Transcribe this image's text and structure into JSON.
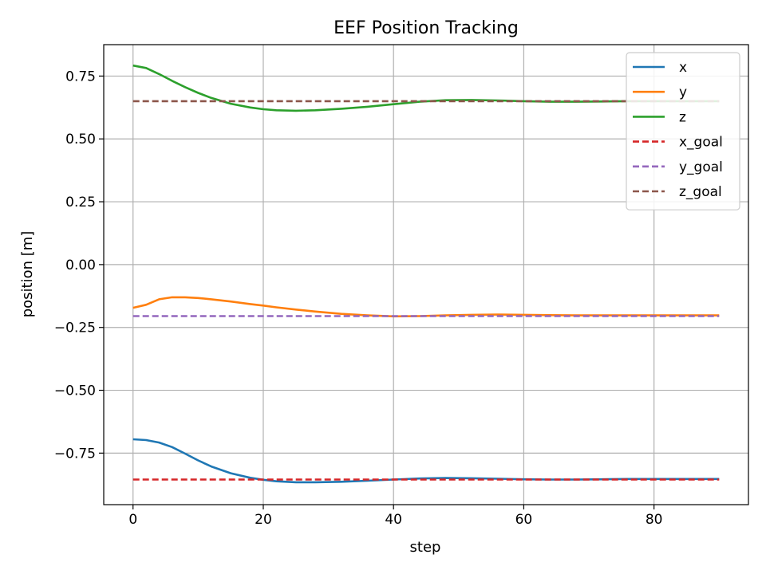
{
  "chart_data": {
    "type": "line",
    "title": "EEF Position Tracking",
    "xlabel": "step",
    "ylabel": "position [m]",
    "xlim": [
      -4.5,
      94.5
    ],
    "ylim": [
      -0.955,
      0.875
    ],
    "xticks": [
      0,
      20,
      40,
      60,
      80
    ],
    "xtick_labels": [
      "0",
      "20",
      "40",
      "60",
      "80"
    ],
    "yticks": [
      0.75,
      0.5,
      0.25,
      0.0,
      -0.25,
      -0.5,
      -0.75
    ],
    "ytick_labels": [
      "0.75",
      "0.50",
      "0.25",
      "0.00",
      "−0.25",
      "−0.50",
      "−0.75"
    ],
    "grid": true,
    "legend_position": "top-right",
    "series": [
      {
        "name": "x",
        "color": "#1f77b4",
        "style": "solid",
        "x": [
          0,
          2,
          4,
          6,
          8,
          10,
          12,
          15,
          18,
          20,
          22,
          25,
          28,
          32,
          36,
          40,
          44,
          48,
          52,
          56,
          60,
          64,
          68,
          72,
          76,
          80,
          84,
          88,
          90
        ],
        "y": [
          -0.695,
          -0.698,
          -0.708,
          -0.726,
          -0.752,
          -0.779,
          -0.803,
          -0.83,
          -0.848,
          -0.856,
          -0.862,
          -0.866,
          -0.866,
          -0.864,
          -0.86,
          -0.855,
          -0.851,
          -0.849,
          -0.85,
          -0.852,
          -0.854,
          -0.855,
          -0.855,
          -0.854,
          -0.853,
          -0.853,
          -0.853,
          -0.853,
          -0.853
        ]
      },
      {
        "name": "y",
        "color": "#ff7f0e",
        "style": "solid",
        "x": [
          0,
          2,
          4,
          6,
          8,
          10,
          12,
          15,
          18,
          20,
          22,
          25,
          28,
          32,
          36,
          40,
          44,
          48,
          52,
          56,
          60,
          64,
          68,
          72,
          76,
          80,
          84,
          88,
          90
        ],
        "y": [
          -0.172,
          -0.16,
          -0.138,
          -0.13,
          -0.13,
          -0.133,
          -0.138,
          -0.147,
          -0.157,
          -0.163,
          -0.17,
          -0.179,
          -0.187,
          -0.196,
          -0.202,
          -0.206,
          -0.205,
          -0.202,
          -0.2,
          -0.199,
          -0.2,
          -0.201,
          -0.202,
          -0.202,
          -0.202,
          -0.202,
          -0.202,
          -0.202,
          -0.202
        ]
      },
      {
        "name": "z",
        "color": "#2ca02c",
        "style": "solid",
        "x": [
          0,
          2,
          4,
          6,
          8,
          10,
          12,
          15,
          18,
          20,
          22,
          25,
          28,
          32,
          36,
          40,
          44,
          48,
          52,
          56,
          60,
          64,
          68,
          72,
          76,
          80,
          84,
          88,
          90
        ],
        "y": [
          0.792,
          0.782,
          0.758,
          0.731,
          0.706,
          0.683,
          0.663,
          0.64,
          0.625,
          0.618,
          0.614,
          0.612,
          0.614,
          0.62,
          0.628,
          0.638,
          0.648,
          0.654,
          0.655,
          0.653,
          0.65,
          0.648,
          0.648,
          0.649,
          0.65,
          0.65,
          0.65,
          0.65,
          0.65
        ]
      },
      {
        "name": "x_goal",
        "color": "#d62728",
        "style": "dashed",
        "x": [
          0,
          90
        ],
        "y": [
          -0.855,
          -0.855
        ]
      },
      {
        "name": "y_goal",
        "color": "#9467bd",
        "style": "dashed",
        "x": [
          0,
          90
        ],
        "y": [
          -0.205,
          -0.205
        ]
      },
      {
        "name": "z_goal",
        "color": "#8c564b",
        "style": "dashed",
        "x": [
          0,
          90
        ],
        "y": [
          0.65,
          0.65
        ]
      }
    ]
  }
}
